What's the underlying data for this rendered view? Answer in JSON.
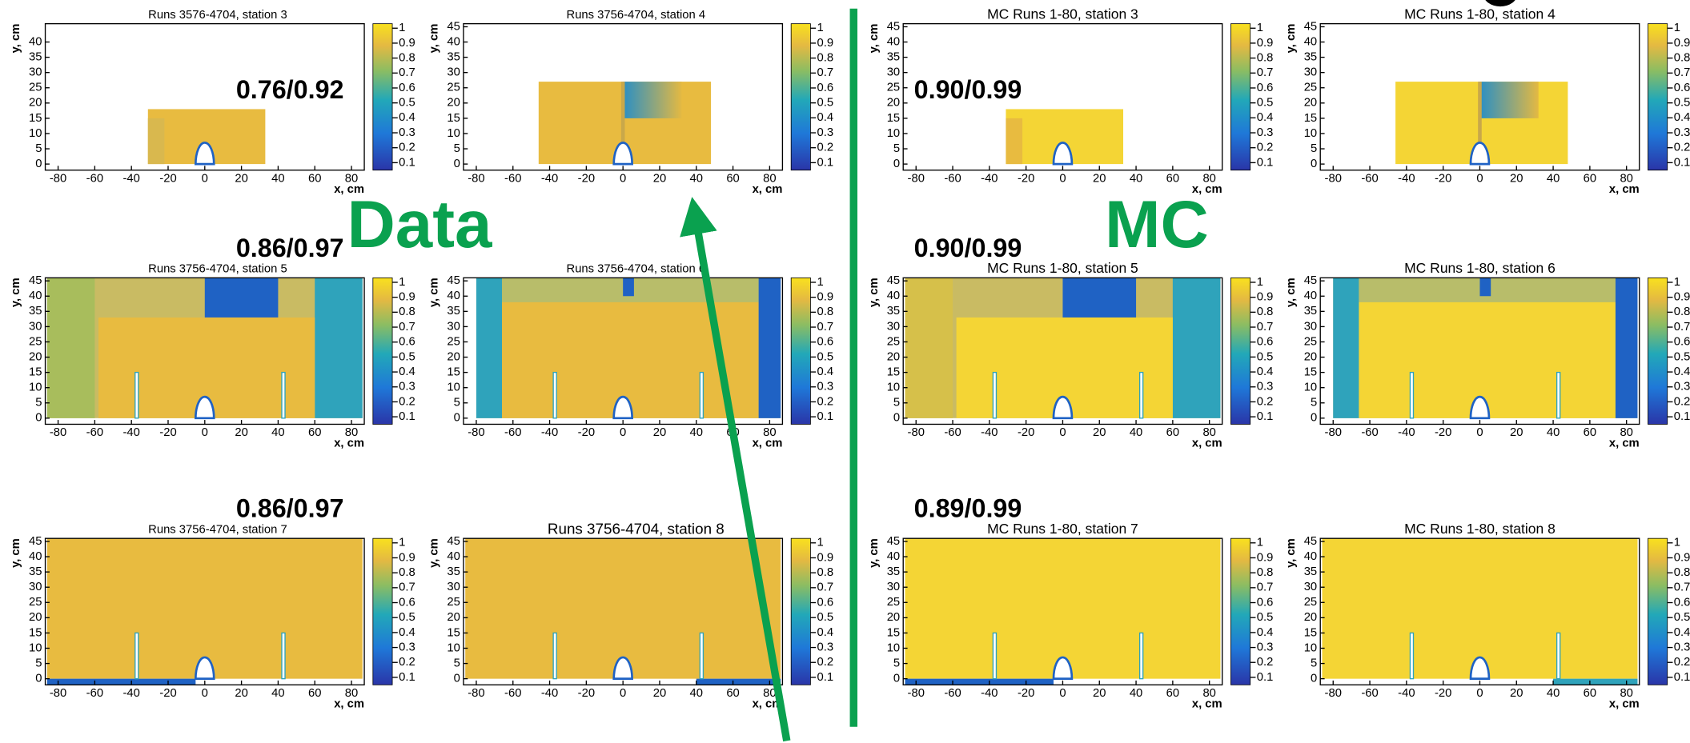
{
  "annotations": {
    "data_label": "Data",
    "mc_label": "MC"
  },
  "axes": {
    "x_label": "x, cm",
    "y_label": "y, cm",
    "xlim": [
      -87,
      87
    ],
    "ylim": [
      -2,
      46
    ],
    "xticks": [
      -80,
      -60,
      -40,
      -20,
      0,
      20,
      40,
      60,
      80
    ],
    "zlim": [
      0.05,
      1.03
    ],
    "zticks": [
      0.1,
      0.2,
      0.3,
      0.4,
      0.5,
      0.6,
      0.7,
      0.8,
      0.9,
      1
    ]
  },
  "panels": [
    {
      "title": "Runs 3576-4704, station 3",
      "efficiency": "0.76/0.92",
      "yticks": [
        0,
        5,
        10,
        15,
        20,
        25,
        30,
        35,
        40
      ]
    },
    {
      "title": "Runs 3756-4704, station 4",
      "yticks": [
        0,
        5,
        10,
        15,
        20,
        25,
        30,
        35,
        40,
        45
      ]
    },
    {
      "title": "MC Runs 1-80, station 3",
      "efficiency": "0.90/0.99",
      "yticks": [
        0,
        5,
        10,
        15,
        20,
        25,
        30,
        35,
        40,
        45
      ]
    },
    {
      "title": "MC Runs 1-80, station 4",
      "yticks": [
        0,
        5,
        10,
        15,
        20,
        25,
        30,
        35,
        40,
        45
      ]
    },
    {
      "title": "Runs 3756-4704, station 5",
      "efficiency": "0.86/0.97",
      "yticks": [
        0,
        5,
        10,
        15,
        20,
        25,
        30,
        35,
        40,
        45
      ]
    },
    {
      "title": "Runs 3756-4704, station 6",
      "yticks": [
        0,
        5,
        10,
        15,
        20,
        25,
        30,
        35,
        40,
        45
      ]
    },
    {
      "title": "MC Runs 1-80, station 5",
      "efficiency": "0.90/0.99",
      "yticks": [
        0,
        5,
        10,
        15,
        20,
        25,
        30,
        35,
        40,
        45
      ]
    },
    {
      "title": "MC Runs 1-80, station 6",
      "yticks": [
        0,
        5,
        10,
        15,
        20,
        25,
        30,
        35,
        40,
        45
      ]
    },
    {
      "title": "Runs 3756-4704, station 7",
      "efficiency": "0.86/0.97",
      "yticks": [
        0,
        5,
        10,
        15,
        20,
        25,
        30,
        35,
        40,
        45
      ]
    },
    {
      "title": "Runs 3756-4704, station 8",
      "yticks": [
        0,
        5,
        10,
        15,
        20,
        25,
        30,
        35,
        40,
        45
      ]
    },
    {
      "title": "MC Runs 1-80, station 7",
      "efficiency": "0.89/0.99",
      "yticks": [
        0,
        5,
        10,
        15,
        20,
        25,
        30,
        35,
        40,
        45
      ]
    },
    {
      "title": "MC Runs 1-80, station 8",
      "yticks": [
        0,
        5,
        10,
        15,
        20,
        25,
        30,
        35,
        40,
        45
      ]
    }
  ]
}
